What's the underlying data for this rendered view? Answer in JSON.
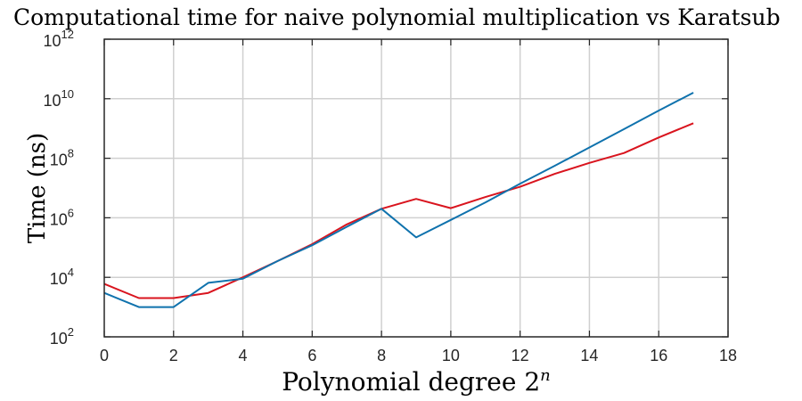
{
  "chart_data": {
    "type": "line",
    "title": "Computational time for naive polynomial multiplication vs Karatsub",
    "xlabel_text": "Polynomial degree 2",
    "xlabel_superscript": "n",
    "ylabel": "Time (ns)",
    "xlim": [
      0,
      18
    ],
    "ylim": [
      100,
      1000000000000
    ],
    "y_scale": "log",
    "grid": true,
    "x_ticks": [
      "0",
      "2",
      "4",
      "6",
      "8",
      "10",
      "12",
      "14",
      "16",
      "18"
    ],
    "y_ticks": [
      {
        "base": "10",
        "exp": "2"
      },
      {
        "base": "10",
        "exp": "4"
      },
      {
        "base": "10",
        "exp": "6"
      },
      {
        "base": "10",
        "exp": "8"
      },
      {
        "base": "10",
        "exp": "10"
      },
      {
        "base": "10",
        "exp": "12"
      }
    ],
    "x": [
      0,
      1,
      2,
      3,
      4,
      5,
      6,
      7,
      8,
      9,
      10,
      11,
      12,
      13,
      14,
      15,
      16,
      17
    ],
    "series": [
      {
        "color": "#d9141e",
        "values": [
          6000,
          2000,
          2000,
          3000,
          10000,
          35000,
          130000,
          600000,
          2000000,
          4300000,
          2100000,
          5000000,
          11000000,
          30000000,
          70000000,
          150000000,
          500000000,
          1500000000
        ]
      },
      {
        "color": "#0f72ad",
        "values": [
          3000,
          1000,
          1000,
          6500,
          9000,
          35000,
          120000,
          500000,
          2000000,
          220000,
          850000,
          3300000,
          14000000,
          56000000,
          230000000,
          950000000,
          4000000000,
          16000000000
        ]
      }
    ]
  }
}
